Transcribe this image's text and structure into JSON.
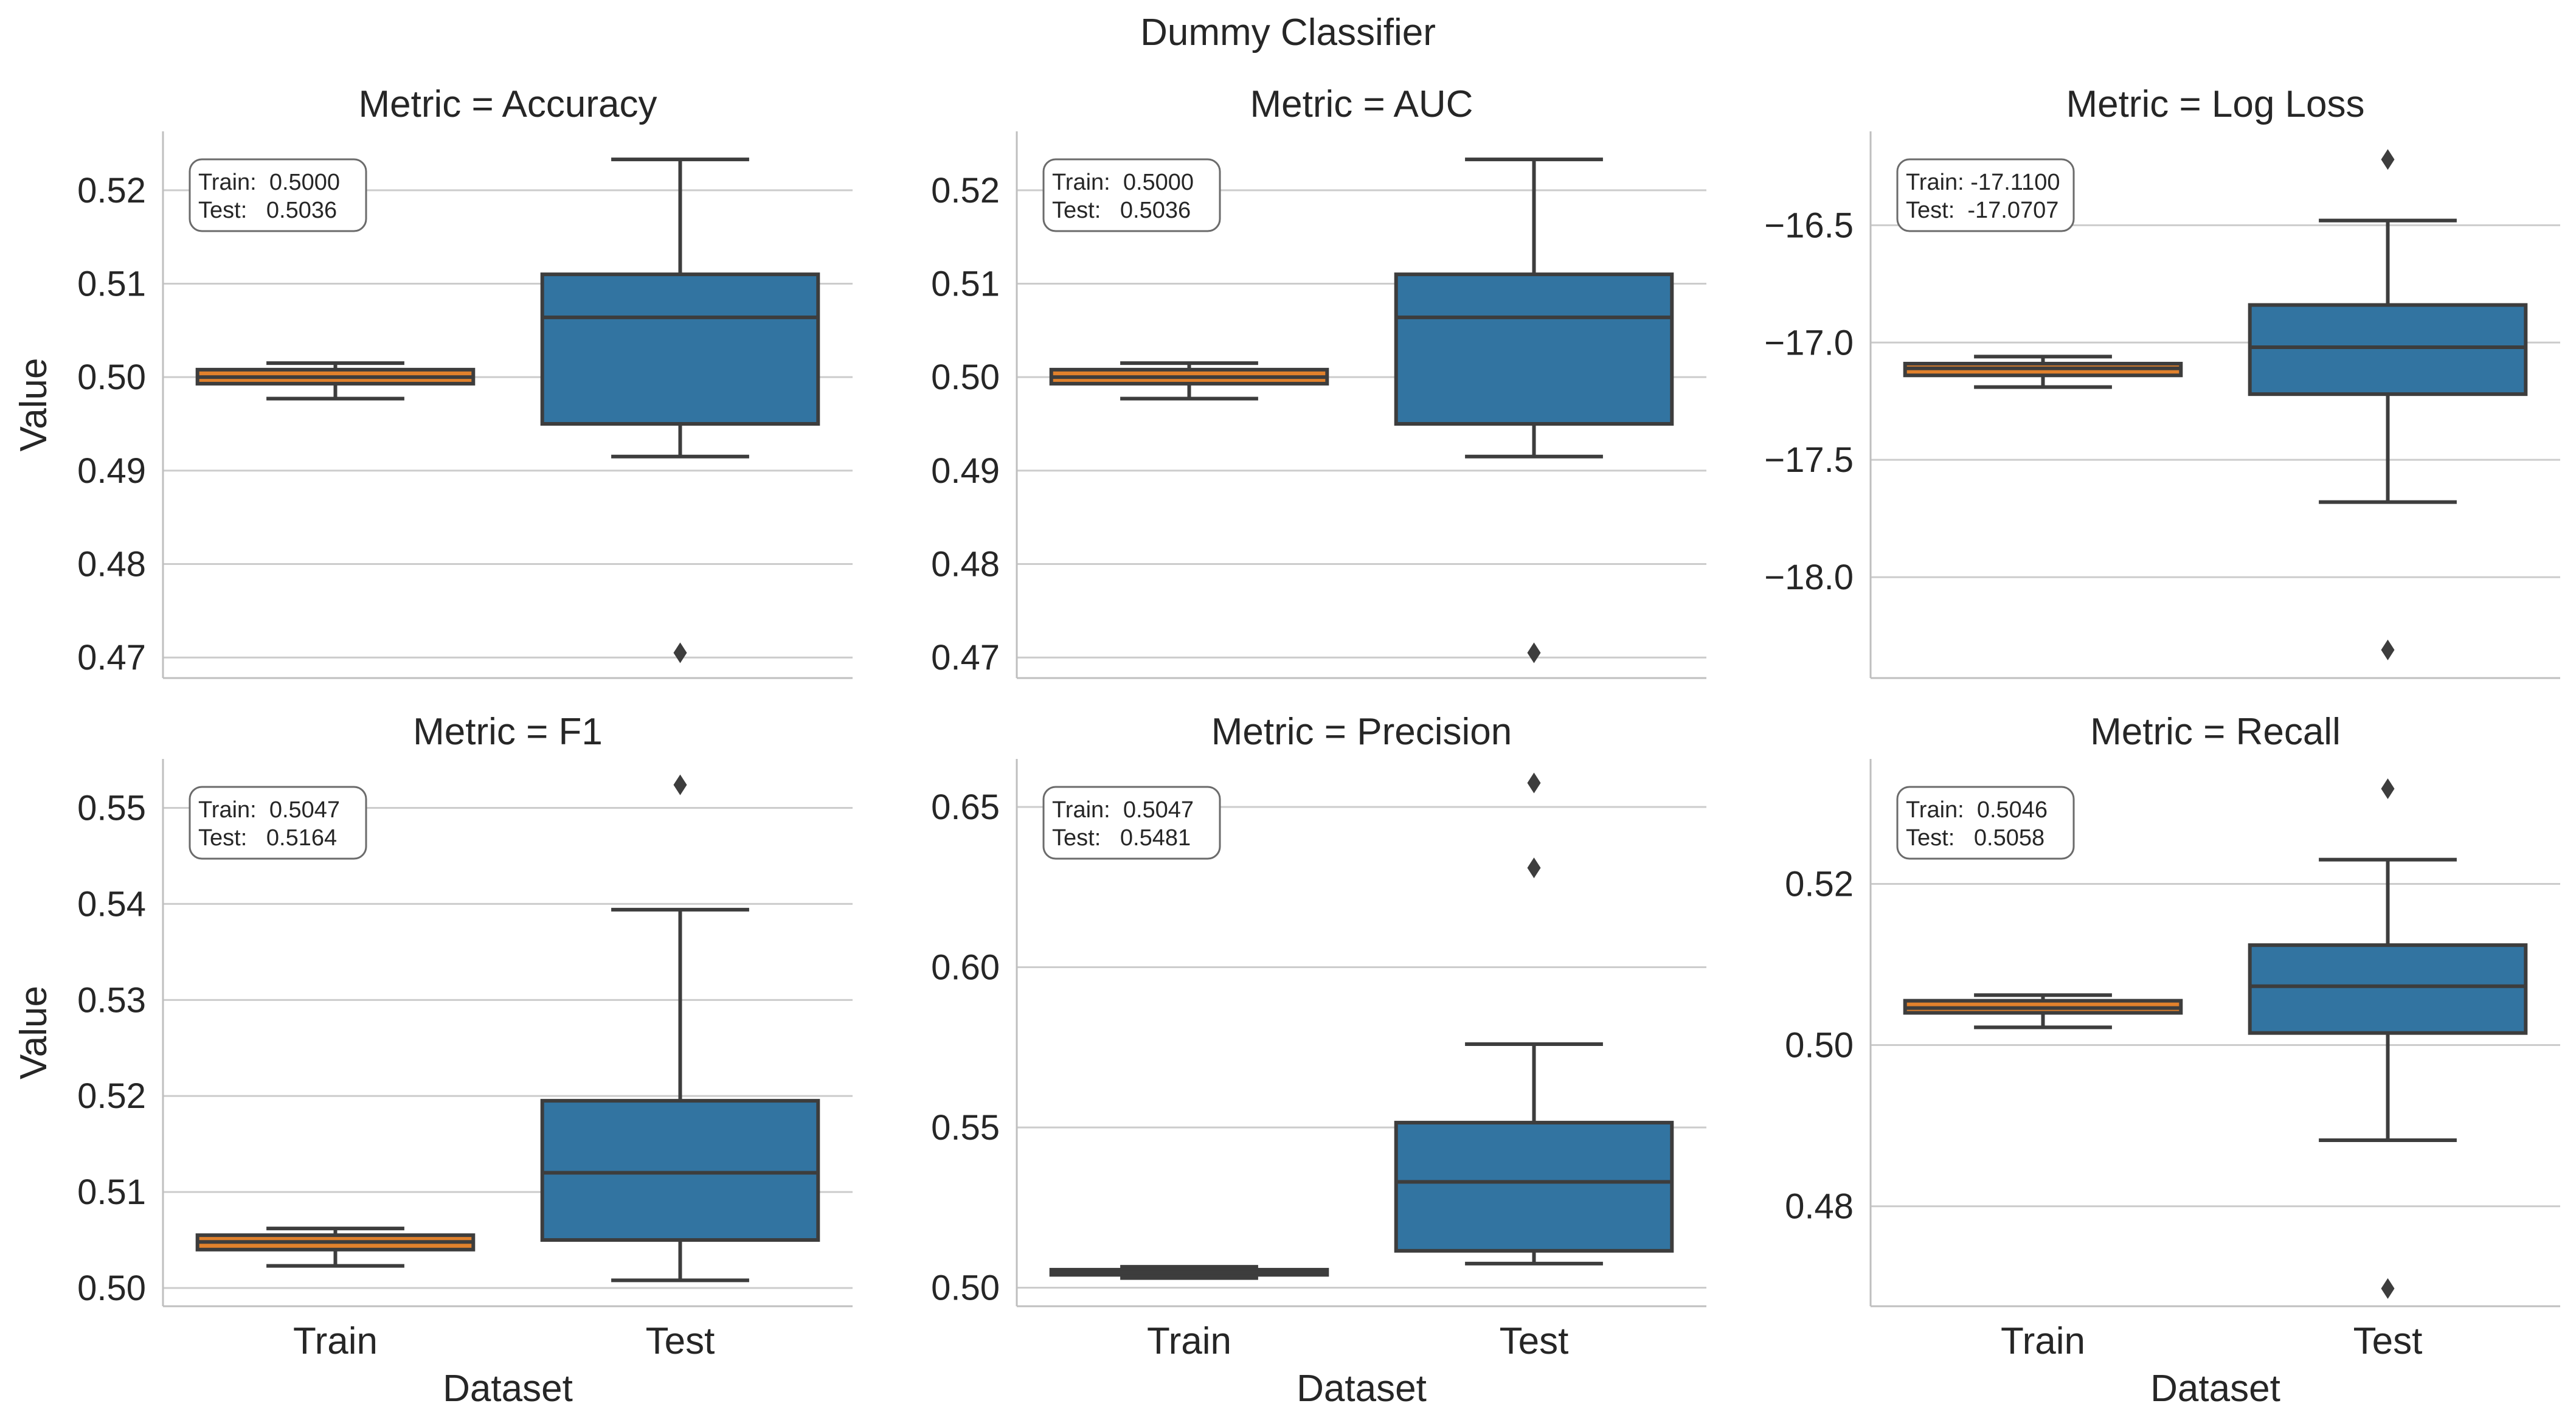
{
  "figure": {
    "title": "Dummy Classifier"
  },
  "colors": {
    "train_box": "#E1812C",
    "test_box": "#3274A1",
    "line": "#3d3d3d",
    "grid": "#cccccc",
    "axis": "#bfbfbf",
    "text": "#262626"
  },
  "chart_data": [
    {
      "type": "box",
      "title": "Metric = Accuracy",
      "xlabel": "",
      "ylabel": "Value",
      "categories": [
        "Train",
        "Test"
      ],
      "show_xticklabels": false,
      "ylim": [
        0.4678,
        0.5263
      ],
      "yticks": [
        0.47,
        0.48,
        0.49,
        0.5,
        0.51,
        0.52
      ],
      "ytick_labels": [
        "0.47",
        "0.48",
        "0.49",
        "0.50",
        "0.51",
        "0.52"
      ],
      "grid": true,
      "stats_box": {
        "position": "top-left",
        "lines": [
          "Train:  0.5000",
          "Test:   0.5036"
        ]
      },
      "boxes": [
        {
          "category": "Train",
          "whisker_low": 0.4977,
          "q1": 0.4993,
          "median": 0.5,
          "q3": 0.5008,
          "whisker_high": 0.5015,
          "outliers": []
        },
        {
          "category": "Test",
          "whisker_low": 0.4915,
          "q1": 0.495,
          "median": 0.5064,
          "q3": 0.511,
          "whisker_high": 0.5233,
          "outliers": [
            0.4705
          ]
        }
      ]
    },
    {
      "type": "box",
      "title": "Metric = AUC",
      "xlabel": "",
      "ylabel": "",
      "categories": [
        "Train",
        "Test"
      ],
      "show_xticklabels": false,
      "ylim": [
        0.4678,
        0.5263
      ],
      "yticks": [
        0.47,
        0.48,
        0.49,
        0.5,
        0.51,
        0.52
      ],
      "ytick_labels": [
        "0.47",
        "0.48",
        "0.49",
        "0.50",
        "0.51",
        "0.52"
      ],
      "grid": true,
      "stats_box": {
        "position": "top-left",
        "lines": [
          "Train:  0.5000",
          "Test:   0.5036"
        ]
      },
      "boxes": [
        {
          "category": "Train",
          "whisker_low": 0.4977,
          "q1": 0.4993,
          "median": 0.5,
          "q3": 0.5008,
          "whisker_high": 0.5015,
          "outliers": []
        },
        {
          "category": "Test",
          "whisker_low": 0.4915,
          "q1": 0.495,
          "median": 0.5064,
          "q3": 0.511,
          "whisker_high": 0.5233,
          "outliers": [
            0.4705
          ]
        }
      ]
    },
    {
      "type": "box",
      "title": "Metric = Log Loss",
      "xlabel": "",
      "ylabel": "",
      "categories": [
        "Train",
        "Test"
      ],
      "show_xticklabels": false,
      "ylim": [
        -18.43,
        -16.1
      ],
      "yticks": [
        -18.0,
        -17.5,
        -17.0,
        -16.5
      ],
      "ytick_labels": [
        "−18.0",
        "−17.5",
        "−17.0",
        "−16.5"
      ],
      "grid": true,
      "stats_box": {
        "position": "top-left",
        "lines": [
          "Train: -17.1100",
          "Test:  -17.0707"
        ]
      },
      "boxes": [
        {
          "category": "Train",
          "whisker_low": -17.19,
          "q1": -17.14,
          "median": -17.11,
          "q3": -17.09,
          "whisker_high": -17.06,
          "outliers": []
        },
        {
          "category": "Test",
          "whisker_low": -17.68,
          "q1": -17.22,
          "median": -17.02,
          "q3": -16.84,
          "whisker_high": -16.48,
          "outliers": [
            -16.22,
            -18.31
          ]
        }
      ]
    },
    {
      "type": "box",
      "title": "Metric = F1",
      "xlabel": "Dataset",
      "ylabel": "Value",
      "categories": [
        "Train",
        "Test"
      ],
      "show_xticklabels": true,
      "ylim": [
        0.4981,
        0.5551
      ],
      "yticks": [
        0.5,
        0.51,
        0.52,
        0.53,
        0.54,
        0.55
      ],
      "ytick_labels": [
        "0.50",
        "0.51",
        "0.52",
        "0.53",
        "0.54",
        "0.55"
      ],
      "grid": true,
      "stats_box": {
        "position": "top-left",
        "lines": [
          "Train:  0.5047",
          "Test:   0.5164"
        ]
      },
      "boxes": [
        {
          "category": "Train",
          "whisker_low": 0.5023,
          "q1": 0.504,
          "median": 0.5048,
          "q3": 0.5055,
          "whisker_high": 0.5062,
          "outliers": []
        },
        {
          "category": "Test",
          "whisker_low": 0.5008,
          "q1": 0.505,
          "median": 0.512,
          "q3": 0.5195,
          "whisker_high": 0.5394,
          "outliers": [
            0.5524
          ]
        }
      ]
    },
    {
      "type": "box",
      "title": "Metric = Precision",
      "xlabel": "Dataset",
      "ylabel": "",
      "categories": [
        "Train",
        "Test"
      ],
      "show_xticklabels": true,
      "ylim": [
        0.4942,
        0.665
      ],
      "yticks": [
        0.5,
        0.55,
        0.6,
        0.65
      ],
      "ytick_labels": [
        "0.50",
        "0.55",
        "0.60",
        "0.65"
      ],
      "grid": true,
      "stats_box": {
        "position": "top-left",
        "lines": [
          "Train:  0.5047",
          "Test:   0.5481"
        ]
      },
      "boxes": [
        {
          "category": "Train",
          "whisker_low": 0.503,
          "q1": 0.504,
          "median": 0.5048,
          "q3": 0.5056,
          "whisker_high": 0.5065,
          "outliers": []
        },
        {
          "category": "Test",
          "whisker_low": 0.5075,
          "q1": 0.5115,
          "median": 0.533,
          "q3": 0.5515,
          "whisker_high": 0.576,
          "outliers": [
            0.631,
            0.6575
          ]
        }
      ]
    },
    {
      "type": "box",
      "title": "Metric = Recall",
      "xlabel": "Dataset",
      "ylabel": "",
      "categories": [
        "Train",
        "Test"
      ],
      "show_xticklabels": true,
      "ylim": [
        0.4676,
        0.5355
      ],
      "yticks": [
        0.48,
        0.5,
        0.52
      ],
      "ytick_labels": [
        "0.48",
        "0.50",
        "0.52"
      ],
      "grid": true,
      "stats_box": {
        "position": "top-left",
        "lines": [
          "Train:  0.5046",
          "Test:   0.5058"
        ]
      },
      "boxes": [
        {
          "category": "Train",
          "whisker_low": 0.5022,
          "q1": 0.504,
          "median": 0.5046,
          "q3": 0.5055,
          "whisker_high": 0.5062,
          "outliers": []
        },
        {
          "category": "Test",
          "whisker_low": 0.4882,
          "q1": 0.5015,
          "median": 0.5073,
          "q3": 0.5124,
          "whisker_high": 0.523,
          "outliers": [
            0.5318,
            0.4698
          ]
        }
      ]
    }
  ]
}
